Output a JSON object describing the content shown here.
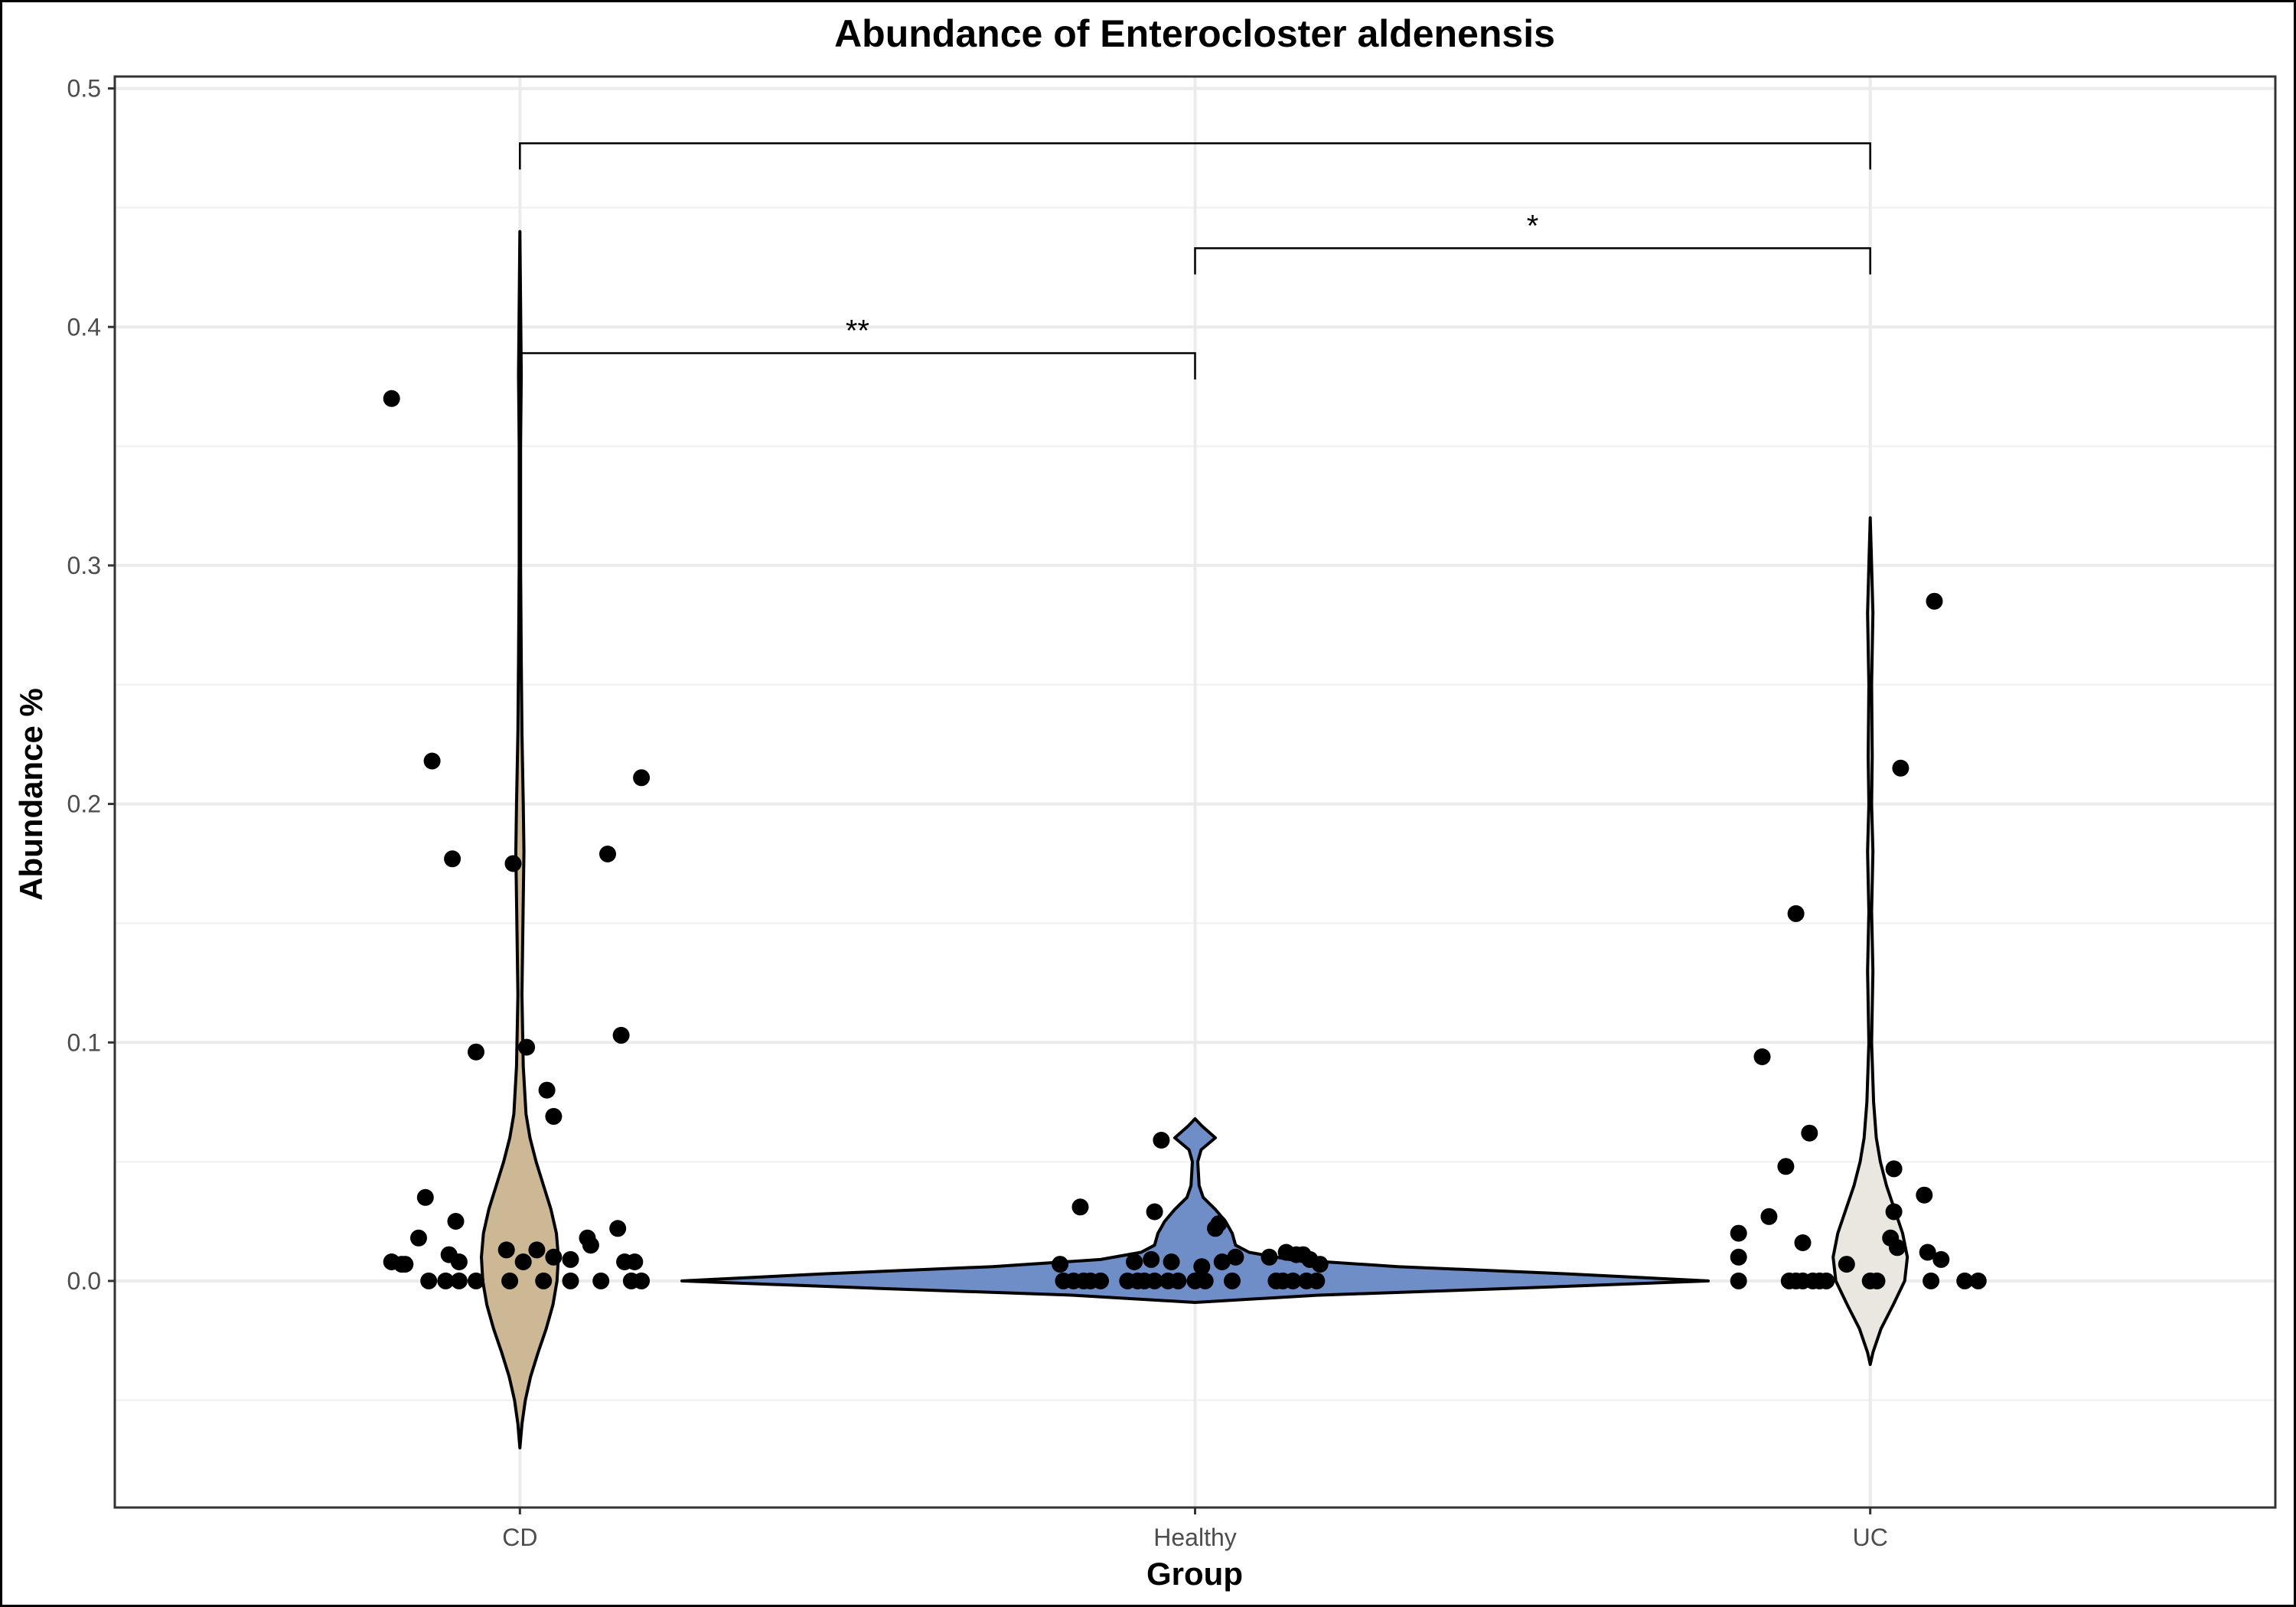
{
  "chart_data": {
    "type": "violin",
    "title": "Abundance of Enterocloster aldenensis",
    "xlabel": "Group",
    "ylabel": "Abundance %",
    "categories": [
      "CD",
      "Healthy",
      "UC"
    ],
    "ylim": [
      -0.095,
      0.505
    ],
    "yticks": [
      0.0,
      0.1,
      0.2,
      0.3,
      0.4,
      0.5
    ],
    "ytick_labels": [
      "0.0",
      "0.1",
      "0.2",
      "0.3",
      "0.4",
      "0.5"
    ],
    "grid": true,
    "legend": "none",
    "colors": {
      "CD": "#cdb895",
      "Healthy": "#6f8dc6",
      "UC": "#e9e7e0"
    },
    "violins": [
      {
        "group": "CD",
        "profile": [
          [
            -0.07,
            0.0
          ],
          [
            -0.06,
            0.003
          ],
          [
            -0.05,
            0.008
          ],
          [
            -0.04,
            0.016
          ],
          [
            -0.03,
            0.027
          ],
          [
            -0.02,
            0.039
          ],
          [
            -0.01,
            0.049
          ],
          [
            0.0,
            0.055
          ],
          [
            0.01,
            0.057
          ],
          [
            0.02,
            0.054
          ],
          [
            0.03,
            0.046
          ],
          [
            0.04,
            0.035
          ],
          [
            0.05,
            0.024
          ],
          [
            0.06,
            0.015
          ],
          [
            0.07,
            0.009
          ],
          [
            0.09,
            0.005
          ],
          [
            0.12,
            0.003
          ],
          [
            0.16,
            0.005
          ],
          [
            0.18,
            0.006
          ],
          [
            0.2,
            0.005
          ],
          [
            0.23,
            0.003
          ],
          [
            0.26,
            0.002
          ],
          [
            0.3,
            0.001
          ],
          [
            0.35,
            0.001
          ],
          [
            0.38,
            0.002
          ],
          [
            0.41,
            0.001
          ],
          [
            0.44,
            0.0
          ]
        ]
      },
      {
        "group": "Healthy",
        "profile": [
          [
            -0.009,
            0.0
          ],
          [
            -0.006,
            0.18
          ],
          [
            -0.003,
            0.48
          ],
          [
            0.0,
            0.76
          ],
          [
            0.003,
            0.55
          ],
          [
            0.006,
            0.3
          ],
          [
            0.009,
            0.14
          ],
          [
            0.012,
            0.08
          ],
          [
            0.015,
            0.06
          ],
          [
            0.02,
            0.055
          ],
          [
            0.025,
            0.045
          ],
          [
            0.03,
            0.03
          ],
          [
            0.035,
            0.012
          ],
          [
            0.04,
            0.006
          ],
          [
            0.045,
            0.005
          ],
          [
            0.05,
            0.004
          ],
          [
            0.055,
            0.009
          ],
          [
            0.06,
            0.03
          ],
          [
            0.065,
            0.01
          ],
          [
            0.068,
            0.0
          ]
        ]
      },
      {
        "group": "UC",
        "profile": [
          [
            -0.035,
            0.0
          ],
          [
            -0.03,
            0.004
          ],
          [
            -0.02,
            0.016
          ],
          [
            -0.01,
            0.034
          ],
          [
            0.0,
            0.051
          ],
          [
            0.01,
            0.055
          ],
          [
            0.02,
            0.048
          ],
          [
            0.03,
            0.036
          ],
          [
            0.04,
            0.024
          ],
          [
            0.05,
            0.015
          ],
          [
            0.06,
            0.009
          ],
          [
            0.075,
            0.005
          ],
          [
            0.1,
            0.002
          ],
          [
            0.13,
            0.004
          ],
          [
            0.155,
            0.002
          ],
          [
            0.18,
            0.004
          ],
          [
            0.2,
            0.002
          ],
          [
            0.22,
            0.003
          ],
          [
            0.25,
            0.002
          ],
          [
            0.28,
            0.004
          ],
          [
            0.3,
            0.002
          ],
          [
            0.32,
            0.0
          ]
        ]
      }
    ],
    "points": [
      {
        "group": "CD",
        "values": [
          0.37,
          0.218,
          0.177,
          0.175,
          0.211,
          0.179,
          0.103,
          0.098,
          0.096,
          0.08,
          0.069,
          0.035,
          0.025,
          0.022,
          0.018,
          0.018,
          0.015,
          0.013,
          0.013,
          0.011,
          0.01,
          0.009,
          0.008,
          0.008,
          0.008,
          0.008,
          0.008,
          0.007,
          0.007,
          0.0,
          0.0,
          0.0,
          0.0,
          0.0,
          0.0,
          0.0,
          0.0,
          0.0,
          0.0
        ],
        "jitter": [
          -0.19,
          -0.13,
          -0.1,
          -0.01,
          0.18,
          0.13,
          0.15,
          0.01,
          -0.065,
          0.04,
          0.05,
          -0.14,
          -0.095,
          0.145,
          -0.15,
          0.1,
          0.105,
          -0.02,
          0.025,
          -0.105,
          0.05,
          0.075,
          -0.09,
          0.005,
          0.155,
          0.17,
          -0.19,
          -0.17,
          -0.175,
          -0.135,
          -0.11,
          -0.09,
          -0.065,
          -0.015,
          0.035,
          0.075,
          0.12,
          0.165,
          0.18
        ]
      },
      {
        "group": "Healthy",
        "values": [
          0.059,
          0.031,
          0.029,
          0.024,
          0.022,
          0.012,
          0.011,
          0.011,
          0.01,
          0.01,
          0.009,
          0.009,
          0.008,
          0.008,
          0.008,
          0.007,
          0.007,
          0.006,
          0.0,
          0.0,
          0.0,
          0.0,
          0.0,
          0.0,
          0.0,
          0.0,
          0.0,
          0.0,
          0.0,
          0.0,
          0.0,
          0.0,
          0.0,
          0.0,
          0.0,
          0.0,
          0.0
        ],
        "jitter": [
          -0.05,
          -0.17,
          -0.06,
          0.035,
          0.03,
          0.135,
          0.15,
          0.16,
          0.11,
          0.06,
          0.17,
          -0.065,
          -0.09,
          -0.035,
          0.04,
          -0.2,
          0.185,
          0.01,
          -0.195,
          -0.18,
          -0.165,
          -0.155,
          -0.14,
          -0.1,
          -0.085,
          -0.075,
          -0.06,
          -0.04,
          -0.025,
          0.0,
          0.015,
          0.055,
          0.12,
          0.13,
          0.145,
          0.165,
          0.18
        ]
      },
      {
        "group": "UC",
        "values": [
          0.285,
          0.215,
          0.154,
          0.094,
          0.062,
          0.048,
          0.047,
          0.036,
          0.029,
          0.027,
          0.02,
          0.018,
          0.016,
          0.014,
          0.012,
          0.01,
          0.009,
          0.007,
          0.0,
          0.0,
          0.0,
          0.0,
          0.0,
          0.0,
          0.0,
          0.0,
          0.0,
          0.0,
          0.0,
          0.0
        ],
        "jitter": [
          0.095,
          0.045,
          -0.11,
          -0.16,
          -0.09,
          -0.125,
          0.035,
          0.08,
          0.035,
          -0.15,
          -0.195,
          0.03,
          -0.1,
          0.04,
          0.085,
          -0.195,
          0.105,
          -0.035,
          -0.195,
          -0.12,
          -0.11,
          -0.1,
          -0.085,
          -0.075,
          -0.065,
          0.0,
          0.01,
          0.09,
          0.14,
          0.16
        ]
      }
    ],
    "significance": [
      {
        "from": "CD",
        "to": "Healthy",
        "y": 0.389,
        "label": "**"
      },
      {
        "from": "Healthy",
        "to": "UC",
        "y": 0.433,
        "label": "*"
      },
      {
        "from": "CD",
        "to": "UC",
        "y": 0.477,
        "label": ""
      }
    ]
  }
}
